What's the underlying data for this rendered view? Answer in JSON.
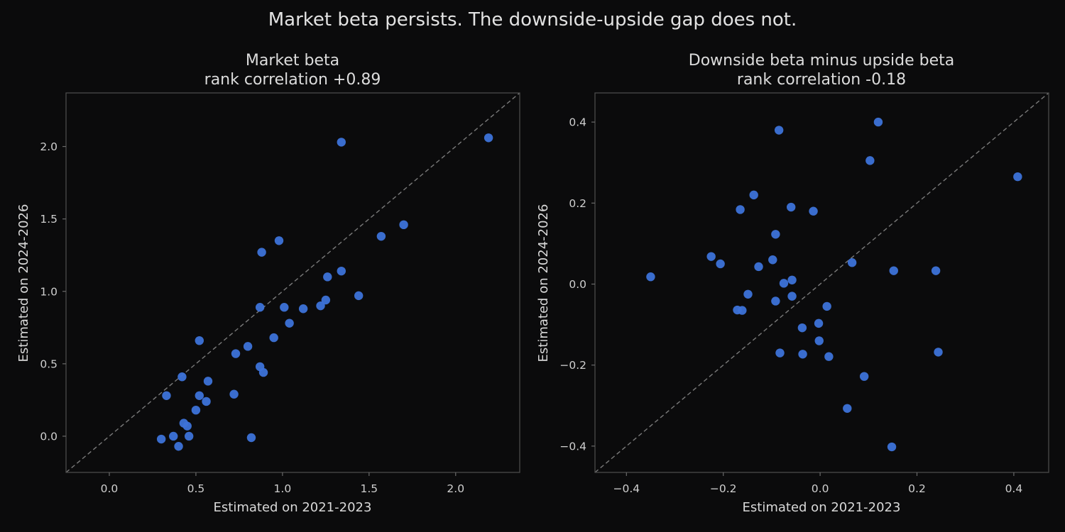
{
  "figure": {
    "suptitle": "Market beta persists. The downside-upside gap does not.",
    "background": "#0b0b0c",
    "point_color": "#3d73d9"
  },
  "chart_data": [
    {
      "type": "scatter",
      "title": "Market beta",
      "subtitle": "rank correlation +0.89",
      "xlabel": "Estimated on 2021-2023",
      "ylabel": "Estimated on 2024-2026",
      "xlim": [
        -0.25,
        2.37
      ],
      "ylim": [
        -0.25,
        2.37
      ],
      "xticks": [
        0.0,
        0.5,
        1.0,
        1.5,
        2.0
      ],
      "xtick_labels": [
        "0.0",
        "0.5",
        "1.0",
        "1.5",
        "2.0"
      ],
      "yticks": [
        0.0,
        0.5,
        1.0,
        1.5,
        2.0
      ],
      "ytick_labels": [
        "0.0",
        "0.5",
        "1.0",
        "1.5",
        "2.0"
      ],
      "reference_line": "y = x (dashed)",
      "grid": false,
      "points": [
        {
          "x": 2.19,
          "y": 2.06
        },
        {
          "x": 1.34,
          "y": 2.03
        },
        {
          "x": 1.7,
          "y": 1.46
        },
        {
          "x": 1.57,
          "y": 1.38
        },
        {
          "x": 0.98,
          "y": 1.35
        },
        {
          "x": 0.88,
          "y": 1.27
        },
        {
          "x": 1.34,
          "y": 1.14
        },
        {
          "x": 1.26,
          "y": 1.1
        },
        {
          "x": 1.44,
          "y": 0.97
        },
        {
          "x": 1.25,
          "y": 0.94
        },
        {
          "x": 1.22,
          "y": 0.9
        },
        {
          "x": 1.12,
          "y": 0.88
        },
        {
          "x": 1.01,
          "y": 0.89
        },
        {
          "x": 0.87,
          "y": 0.89
        },
        {
          "x": 1.04,
          "y": 0.78
        },
        {
          "x": 0.95,
          "y": 0.68
        },
        {
          "x": 0.52,
          "y": 0.66
        },
        {
          "x": 0.8,
          "y": 0.62
        },
        {
          "x": 0.73,
          "y": 0.57
        },
        {
          "x": 0.87,
          "y": 0.48
        },
        {
          "x": 0.89,
          "y": 0.44
        },
        {
          "x": 0.42,
          "y": 0.41
        },
        {
          "x": 0.57,
          "y": 0.38
        },
        {
          "x": 0.33,
          "y": 0.28
        },
        {
          "x": 0.52,
          "y": 0.28
        },
        {
          "x": 0.72,
          "y": 0.29
        },
        {
          "x": 0.56,
          "y": 0.24
        },
        {
          "x": 0.5,
          "y": 0.18
        },
        {
          "x": 0.43,
          "y": 0.09
        },
        {
          "x": 0.45,
          "y": 0.07
        },
        {
          "x": 0.37,
          "y": 0.0
        },
        {
          "x": 0.46,
          "y": 0.0
        },
        {
          "x": 0.3,
          "y": -0.02
        },
        {
          "x": 0.82,
          "y": -0.01
        },
        {
          "x": 0.4,
          "y": -0.07
        }
      ]
    },
    {
      "type": "scatter",
      "title": "Downside beta minus upside beta",
      "subtitle": "rank correlation -0.18",
      "xlabel": "Estimated on 2021-2023",
      "ylabel": "Estimated on 2024-2026",
      "xlim": [
        -0.465,
        0.472
      ],
      "ylim": [
        -0.465,
        0.472
      ],
      "xticks": [
        -0.4,
        -0.2,
        0.0,
        0.2,
        0.4
      ],
      "xtick_labels": [
        "−0.4",
        "−0.2",
        "0.0",
        "0.2",
        "0.4"
      ],
      "yticks": [
        -0.4,
        -0.2,
        0.0,
        0.2,
        0.4
      ],
      "ytick_labels": [
        "−0.4",
        "−0.2",
        "0.0",
        "0.2",
        "0.4"
      ],
      "reference_line": "y = x (dashed)",
      "grid": false,
      "points": [
        {
          "x": 0.12,
          "y": 0.4
        },
        {
          "x": -0.085,
          "y": 0.38
        },
        {
          "x": 0.103,
          "y": 0.305
        },
        {
          "x": 0.408,
          "y": 0.265
        },
        {
          "x": -0.137,
          "y": 0.22
        },
        {
          "x": -0.06,
          "y": 0.19
        },
        {
          "x": -0.165,
          "y": 0.184
        },
        {
          "x": -0.014,
          "y": 0.18
        },
        {
          "x": -0.092,
          "y": 0.123
        },
        {
          "x": -0.225,
          "y": 0.068
        },
        {
          "x": -0.098,
          "y": 0.06
        },
        {
          "x": 0.066,
          "y": 0.053
        },
        {
          "x": -0.206,
          "y": 0.05
        },
        {
          "x": -0.127,
          "y": 0.043
        },
        {
          "x": 0.152,
          "y": 0.033
        },
        {
          "x": 0.239,
          "y": 0.033
        },
        {
          "x": -0.35,
          "y": 0.018
        },
        {
          "x": -0.058,
          "y": 0.01
        },
        {
          "x": -0.075,
          "y": 0.002
        },
        {
          "x": -0.149,
          "y": -0.025
        },
        {
          "x": -0.058,
          "y": -0.03
        },
        {
          "x": -0.092,
          "y": -0.042
        },
        {
          "x": 0.014,
          "y": -0.055
        },
        {
          "x": -0.171,
          "y": -0.064
        },
        {
          "x": -0.161,
          "y": -0.065
        },
        {
          "x": -0.003,
          "y": -0.097
        },
        {
          "x": -0.037,
          "y": -0.108
        },
        {
          "x": -0.002,
          "y": -0.14
        },
        {
          "x": 0.244,
          "y": -0.168
        },
        {
          "x": -0.083,
          "y": -0.17
        },
        {
          "x": -0.036,
          "y": -0.173
        },
        {
          "x": 0.018,
          "y": -0.179
        },
        {
          "x": 0.091,
          "y": -0.228
        },
        {
          "x": 0.056,
          "y": -0.307
        },
        {
          "x": 0.148,
          "y": -0.402
        }
      ]
    }
  ]
}
